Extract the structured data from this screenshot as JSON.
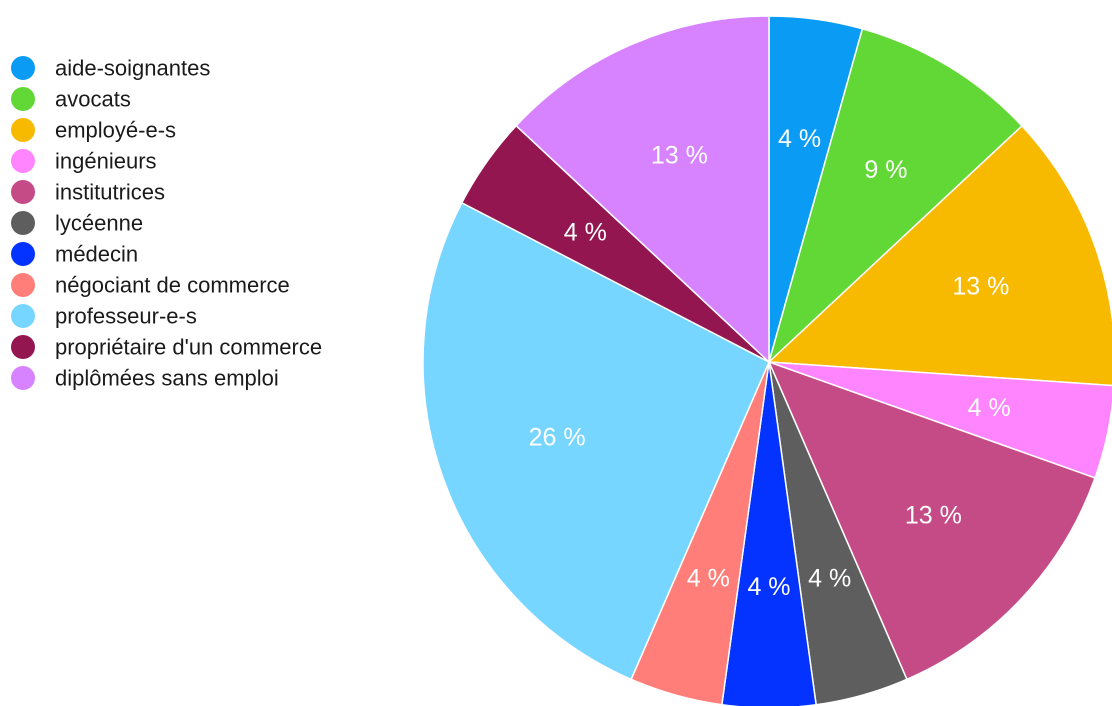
{
  "chart_data": {
    "type": "pie",
    "title": "",
    "legend_position": "top-left",
    "start_angle": "12 o'clock, clockwise",
    "slices": [
      {
        "label": "aide-soignantes",
        "value": 4.35,
        "display": "4 %",
        "color": "#0A9BF5"
      },
      {
        "label": "avocats",
        "value": 8.7,
        "display": "9 %",
        "color": "#61D836"
      },
      {
        "label": "employé-e-s",
        "value": 13.04,
        "display": "13 %",
        "color": "#F8BA00"
      },
      {
        "label": "ingénieurs",
        "value": 4.35,
        "display": "4 %",
        "color": "#FF85FF"
      },
      {
        "label": "institutrices",
        "value": 13.04,
        "display": "13 %",
        "color": "#C54B87"
      },
      {
        "label": "lycéenne",
        "value": 4.35,
        "display": "4 %",
        "color": "#5E5E5E"
      },
      {
        "label": "médecin",
        "value": 4.35,
        "display": "4 %",
        "color": "#0433FF"
      },
      {
        "label": "négociant de commerce",
        "value": 4.35,
        "display": "4 %",
        "color": "#FF7E79"
      },
      {
        "label": "professeur-e-s",
        "value": 26.09,
        "display": "26 %",
        "color": "#76D6FF"
      },
      {
        "label": "propriétaire d'un commerce",
        "value": 4.35,
        "display": "4 %",
        "color": "#941651"
      },
      {
        "label": "diplômées sans emploi",
        "value": 13.04,
        "display": "13 %",
        "color": "#D783FF"
      }
    ]
  }
}
